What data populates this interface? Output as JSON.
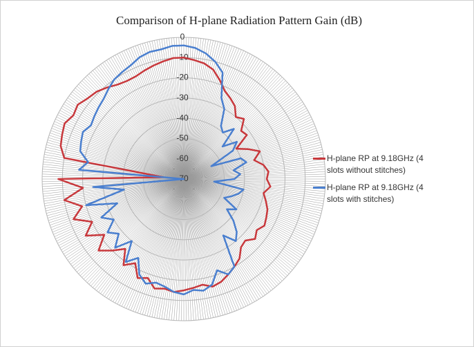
{
  "chart_data": {
    "type": "radar",
    "title": "Comparison of H-plane Radiation Pattern Gain (dB)",
    "ylim": [
      -70,
      0
    ],
    "yticks": [
      0,
      -10,
      -20,
      -30,
      -40,
      -50,
      -60,
      -70
    ],
    "series": [
      {
        "name": "H-plane RP at 9.18GHz (4 slots without stitches)",
        "color": "#c8383c",
        "values": [
          -10,
          -11,
          -12,
          -14,
          -18,
          -22,
          -24,
          -26,
          -30,
          -28,
          -33,
          -32,
          -40,
          -35,
          -30,
          -34,
          -30,
          -28,
          -29,
          -27,
          -30,
          -28,
          -26,
          -25,
          -24,
          -26,
          -24,
          -27,
          -26,
          -22,
          -20,
          -18,
          -16,
          -15,
          -17,
          -16,
          -15,
          -14,
          -15,
          -14,
          -18,
          -16,
          -22,
          -18,
          -25,
          -20,
          -15,
          -22,
          -14,
          -20,
          -12,
          -18,
          -10,
          -20,
          -8,
          -60,
          -10,
          -7,
          -6,
          -5,
          -7,
          -6,
          -8,
          -9,
          -11,
          -13,
          -14,
          -14,
          -13,
          -12,
          -11,
          -10
        ]
      },
      {
        "name": "H-plane RP at 9.18GHz (4 slots with stitches)",
        "color": "#4a7fcf",
        "values": [
          -4,
          -5,
          -7,
          -10,
          -14,
          -26,
          -30,
          -38,
          -40,
          -35,
          -45,
          -38,
          -42,
          -55,
          -40,
          -38,
          -45,
          -42,
          -45,
          -55,
          -40,
          -42,
          -45,
          -48,
          -40,
          -44,
          -38,
          -33,
          -30,
          -36,
          -20,
          -18,
          -22,
          -16,
          -14,
          -15,
          -13,
          -14,
          -16,
          -17,
          -15,
          -18,
          -25,
          -20,
          -30,
          -22,
          -28,
          -24,
          -30,
          -25,
          -35,
          -20,
          -40,
          -25,
          -70,
          -18,
          -22,
          -17,
          -16,
          -15,
          -17,
          -16,
          -15,
          -14,
          -12,
          -10,
          -9,
          -8,
          -6,
          -5,
          -5,
          -4
        ]
      }
    ]
  }
}
